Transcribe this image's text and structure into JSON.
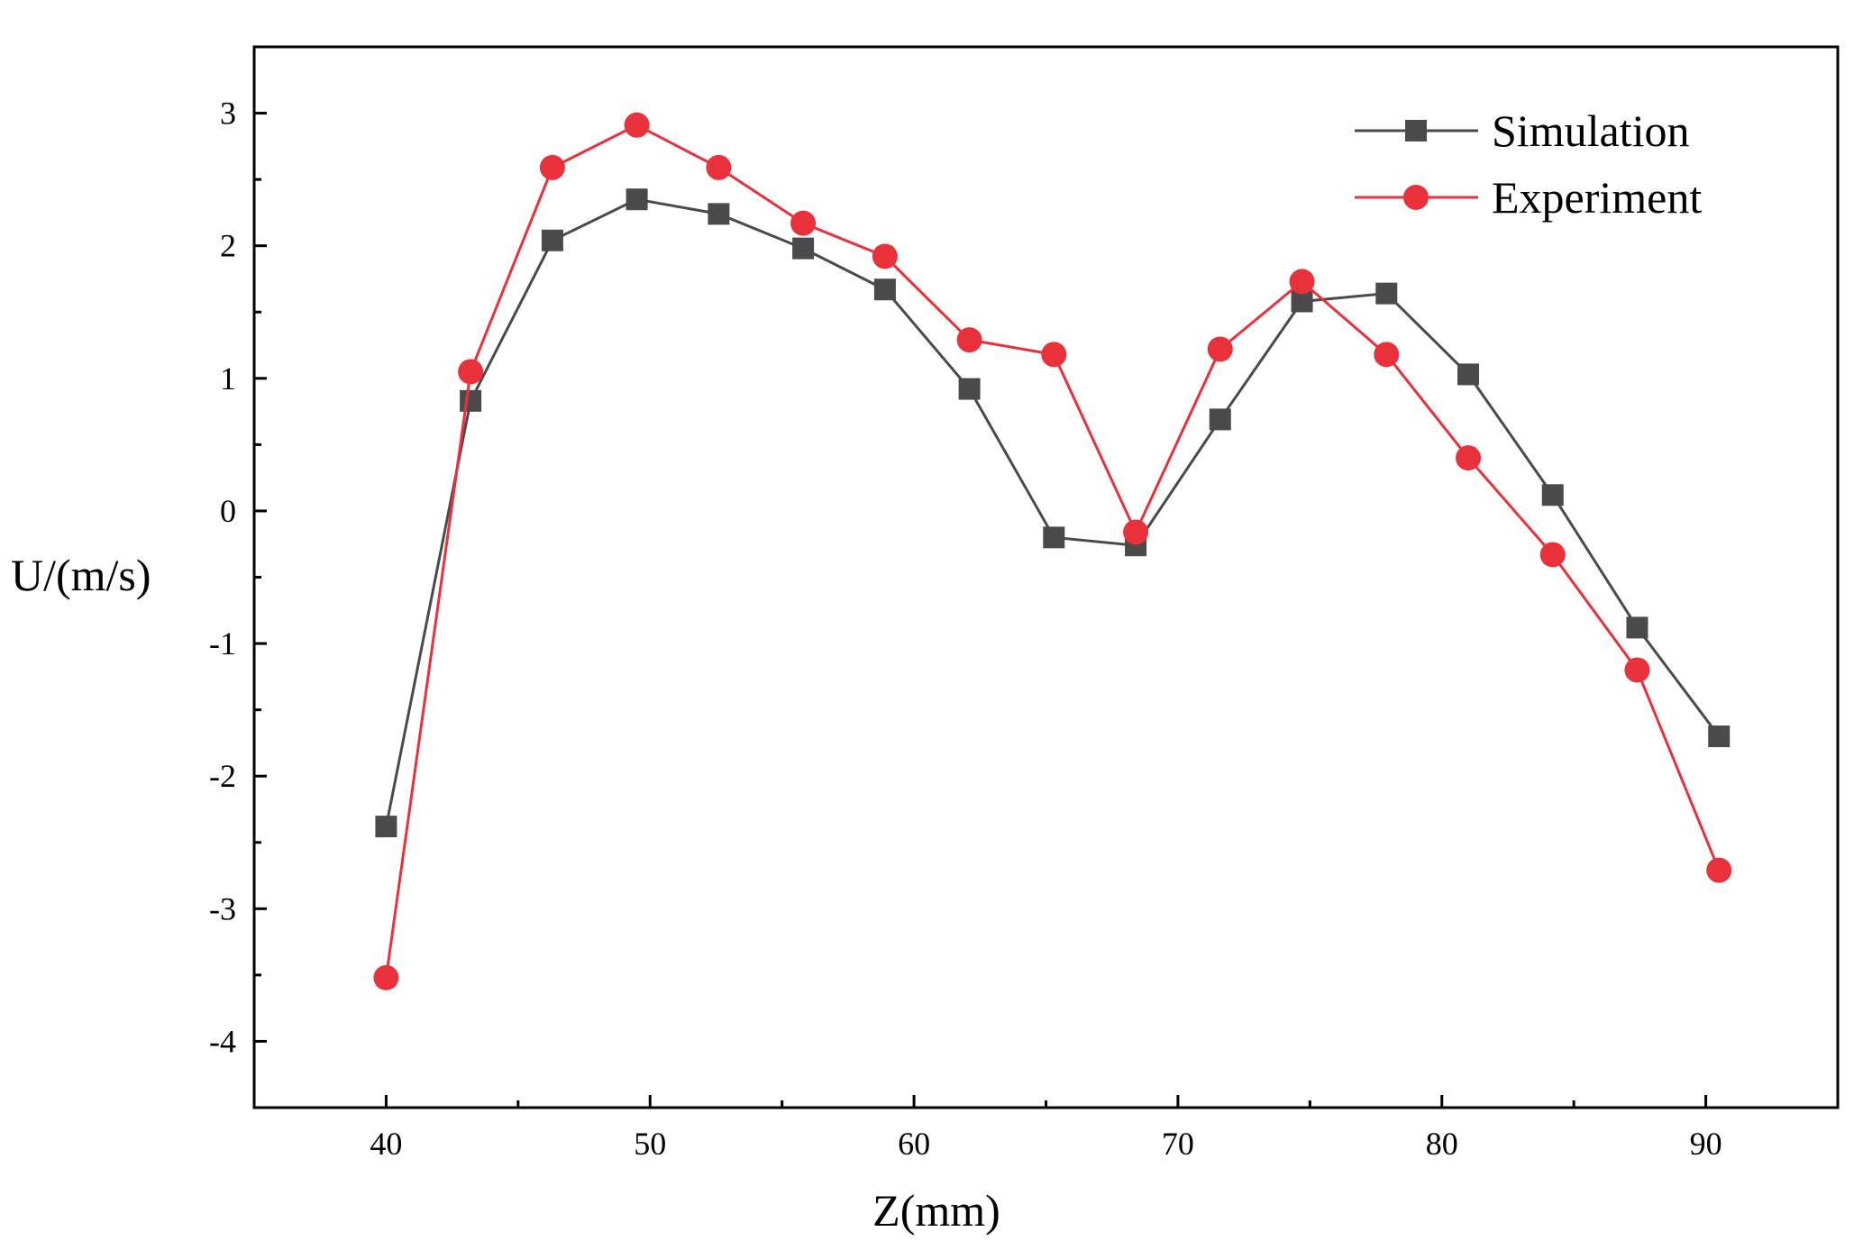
{
  "chart_data": {
    "type": "line",
    "title": "",
    "xlabel": "Z(mm)",
    "ylabel": "U/(m/s)",
    "xlim": [
      35,
      95
    ],
    "ylim": [
      -4.5,
      3.5
    ],
    "xticks": [
      40,
      50,
      60,
      70,
      80,
      90
    ],
    "yticks": [
      3,
      2,
      1,
      0,
      -1,
      -2,
      -3,
      -4
    ],
    "xtick_labels": [
      "40",
      "50",
      "60",
      "70",
      "80",
      "90"
    ],
    "ytick_labels": [
      "3",
      "2",
      "1",
      "0",
      "-1",
      "-2",
      "-3",
      "-4"
    ],
    "grid": false,
    "legend_position": "top-right",
    "series": [
      {
        "name": "Simulation",
        "color": "#4a4a4a",
        "marker": "square",
        "x": [
          40.0,
          43.2,
          46.3,
          49.5,
          52.6,
          55.8,
          58.9,
          62.1,
          65.3,
          68.4,
          71.6,
          74.7,
          77.9,
          81.0,
          84.2,
          87.4,
          90.5
        ],
        "y": [
          -2.38,
          0.83,
          2.04,
          2.35,
          2.24,
          1.98,
          1.67,
          0.92,
          -0.2,
          -0.26,
          0.69,
          1.58,
          1.64,
          1.03,
          0.12,
          -0.88,
          -1.7
        ]
      },
      {
        "name": "Experiment",
        "color": "#e8313a",
        "marker": "circle",
        "x": [
          40.0,
          43.2,
          46.3,
          49.5,
          52.6,
          55.8,
          58.9,
          62.1,
          65.3,
          68.4,
          71.6,
          74.7,
          77.9,
          81.0,
          84.2,
          87.4,
          90.5
        ],
        "y": [
          -3.52,
          1.05,
          2.59,
          2.91,
          2.59,
          2.17,
          1.92,
          1.29,
          1.18,
          -0.16,
          1.22,
          1.73,
          1.18,
          0.4,
          -0.33,
          -1.2,
          -2.71
        ]
      }
    ]
  }
}
